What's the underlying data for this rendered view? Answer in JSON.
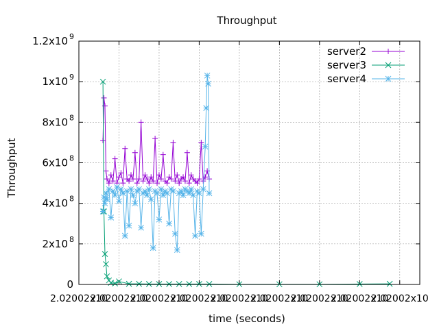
{
  "chart_data": {
    "type": "line",
    "title": "Throughput",
    "xlabel": "time (seconds)",
    "ylabel": "Throughput",
    "grid": true,
    "legend_placement": "top-right",
    "ylim": [
      0,
      1200000000
    ],
    "xlim": [
      0,
      17
    ],
    "y_ticks": [
      {
        "value": 0,
        "base": "0",
        "exp": ""
      },
      {
        "value": 200000000,
        "base": "2x10",
        "exp": "8"
      },
      {
        "value": 400000000,
        "base": "4x10",
        "exp": "8"
      },
      {
        "value": 600000000,
        "base": "6x10",
        "exp": "8"
      },
      {
        "value": 800000000,
        "base": "8x10",
        "exp": "8"
      },
      {
        "value": 1000000000,
        "base": "1x10",
        "exp": "9"
      },
      {
        "value": 1200000000,
        "base": "1.2x10",
        "exp": "9"
      }
    ],
    "x_ticks": [
      {
        "value": 0,
        "label": "2.02002x10"
      },
      {
        "value": 2,
        "label": "2.02002x10"
      },
      {
        "value": 4,
        "label": "2.02002x10"
      },
      {
        "value": 6,
        "label": "2.02002x10"
      },
      {
        "value": 8,
        "label": "2.02002x10"
      },
      {
        "value": 10,
        "label": "2.02002x10"
      },
      {
        "value": 12,
        "label": "2.02002x10"
      },
      {
        "value": 14,
        "label": "2.02002x10"
      },
      {
        "value": 16,
        "label": "2.02002x10"
      }
    ],
    "series": [
      {
        "name": "server2",
        "color": "#9400d3",
        "marker": "plus",
        "x": [
          1.2,
          1.25,
          1.3,
          1.35,
          1.4,
          1.5,
          1.6,
          1.7,
          1.8,
          1.9,
          2.0,
          2.1,
          2.2,
          2.3,
          2.4,
          2.5,
          2.6,
          2.7,
          2.8,
          2.9,
          3.0,
          3.1,
          3.2,
          3.3,
          3.4,
          3.5,
          3.6,
          3.7,
          3.8,
          3.9,
          4.0,
          4.1,
          4.2,
          4.3,
          4.4,
          4.5,
          4.6,
          4.7,
          4.8,
          4.9,
          5.0,
          5.1,
          5.2,
          5.3,
          5.4,
          5.5,
          5.6,
          5.7,
          5.8,
          5.9,
          6.0,
          6.1,
          6.2,
          6.3,
          6.4,
          6.5
        ],
        "y": [
          710000000,
          920000000,
          880000000,
          560000000,
          520000000,
          500000000,
          540000000,
          510000000,
          620000000,
          500000000,
          530000000,
          550000000,
          500000000,
          670000000,
          520000000,
          510000000,
          540000000,
          520000000,
          650000000,
          500000000,
          520000000,
          800000000,
          510000000,
          540000000,
          520000000,
          500000000,
          530000000,
          510000000,
          720000000,
          500000000,
          540000000,
          520000000,
          640000000,
          510000000,
          500000000,
          530000000,
          520000000,
          700000000,
          510000000,
          540000000,
          500000000,
          520000000,
          530000000,
          510000000,
          650000000,
          500000000,
          540000000,
          520000000,
          510000000,
          500000000,
          520000000,
          700000000,
          510000000,
          530000000,
          560000000,
          520000000
        ]
      },
      {
        "name": "server3",
        "color": "#009e73",
        "marker": "cross",
        "x": [
          1.2,
          1.25,
          1.3,
          1.35,
          1.4,
          1.5,
          1.6,
          1.8,
          2.0,
          2.5,
          3.0,
          3.5,
          4.0,
          4.5,
          5.0,
          5.5,
          6.0,
          6.5,
          8.0,
          10.0,
          12.0,
          14.0,
          15.5
        ],
        "y": [
          1000000000,
          360000000,
          150000000,
          100000000,
          40000000,
          20000000,
          8000000,
          5000000,
          15000000,
          3000000,
          3000000,
          2000000,
          2000000,
          2000000,
          2000000,
          2000000,
          2000000,
          2000000,
          1000000,
          1000000,
          1000000,
          2000000,
          3000000
        ]
      },
      {
        "name": "server4",
        "color": "#56b4e9",
        "marker": "star",
        "x": [
          1.2,
          1.25,
          1.3,
          1.35,
          1.4,
          1.5,
          1.6,
          1.7,
          1.8,
          1.9,
          2.0,
          2.1,
          2.2,
          2.3,
          2.4,
          2.5,
          2.6,
          2.7,
          2.8,
          2.9,
          3.0,
          3.1,
          3.2,
          3.3,
          3.4,
          3.5,
          3.6,
          3.7,
          3.8,
          3.9,
          4.0,
          4.1,
          4.2,
          4.3,
          4.4,
          4.5,
          4.6,
          4.7,
          4.8,
          4.9,
          5.0,
          5.1,
          5.2,
          5.3,
          5.4,
          5.5,
          5.6,
          5.7,
          5.8,
          5.9,
          6.0,
          6.1,
          6.2,
          6.3,
          6.35,
          6.4,
          6.45,
          6.5
        ],
        "y": [
          360000000,
          430000000,
          400000000,
          450000000,
          420000000,
          470000000,
          330000000,
          460000000,
          440000000,
          480000000,
          410000000,
          470000000,
          450000000,
          240000000,
          460000000,
          290000000,
          470000000,
          440000000,
          400000000,
          460000000,
          470000000,
          280000000,
          450000000,
          460000000,
          440000000,
          470000000,
          420000000,
          180000000,
          460000000,
          450000000,
          320000000,
          470000000,
          440000000,
          460000000,
          450000000,
          300000000,
          470000000,
          460000000,
          250000000,
          170000000,
          450000000,
          460000000,
          440000000,
          470000000,
          460000000,
          450000000,
          470000000,
          440000000,
          240000000,
          460000000,
          450000000,
          250000000,
          470000000,
          680000000,
          870000000,
          1030000000,
          990000000,
          450000000
        ]
      }
    ]
  }
}
